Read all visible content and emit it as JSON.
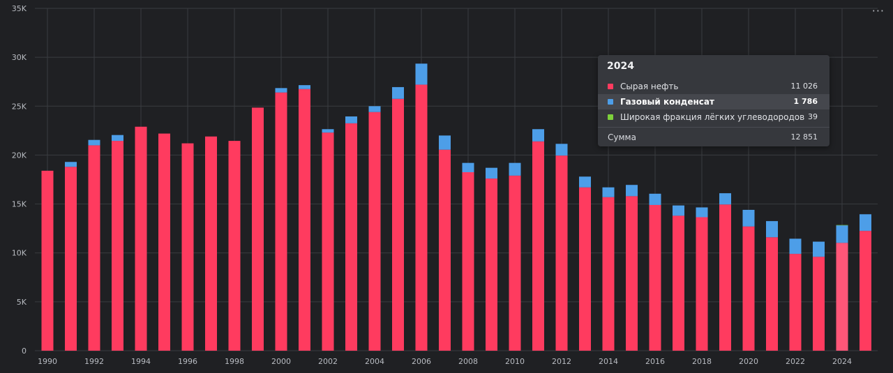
{
  "chart_data": {
    "type": "bar",
    "stacked": true,
    "title": "",
    "xlabel": "",
    "ylabel": "",
    "ylim": [
      0,
      35000
    ],
    "yticks": [
      {
        "value": 0,
        "label": "0"
      },
      {
        "value": 5000,
        "label": "5K"
      },
      {
        "value": 10000,
        "label": "10K"
      },
      {
        "value": 15000,
        "label": "15K"
      },
      {
        "value": 20000,
        "label": "20K"
      },
      {
        "value": 25000,
        "label": "25K"
      },
      {
        "value": 30000,
        "label": "30K"
      },
      {
        "value": 35000,
        "label": "35K"
      }
    ],
    "categories": [
      "1990",
      "1991",
      "1992",
      "1993",
      "1994",
      "1995",
      "1996",
      "1997",
      "1998",
      "1999",
      "2000",
      "2001",
      "2002",
      "2003",
      "2004",
      "2005",
      "2006",
      "2007",
      "2008",
      "2009",
      "2010",
      "2011",
      "2012",
      "2013",
      "2014",
      "2015",
      "2016",
      "2017",
      "2018",
      "2019",
      "2020",
      "2021",
      "2022",
      "2023",
      "2024",
      "2025"
    ],
    "xtick_labels": [
      "1990",
      "",
      "1992",
      "",
      "1994",
      "",
      "1996",
      "",
      "1998",
      "",
      "2000",
      "",
      "2002",
      "",
      "2004",
      "",
      "2006",
      "",
      "2008",
      "",
      "2010",
      "",
      "2012",
      "",
      "2014",
      "",
      "2016",
      "",
      "2018",
      "",
      "2020",
      "",
      "2022",
      "",
      "2024",
      ""
    ],
    "grid": true,
    "series": [
      {
        "name": "Сырая нефть",
        "color": "#ff3b5f",
        "values": [
          18400,
          18800,
          21000,
          21450,
          22900,
          22200,
          21200,
          21900,
          21450,
          24850,
          26400,
          26750,
          22300,
          23250,
          24400,
          25750,
          27200,
          20550,
          18250,
          17600,
          17900,
          21400,
          19950,
          16700,
          15700,
          15800,
          14900,
          13800,
          13650,
          14950,
          12700,
          11600,
          9900,
          9600,
          11026,
          12250
        ]
      },
      {
        "name": "Газовый конденсат",
        "color": "#4d9ee8",
        "values": [
          0,
          500,
          550,
          600,
          0,
          0,
          0,
          0,
          0,
          0,
          450,
          400,
          350,
          700,
          600,
          1200,
          2150,
          1450,
          950,
          1100,
          1300,
          1250,
          1200,
          1100,
          1000,
          1150,
          1150,
          1050,
          1000,
          1150,
          1700,
          1650,
          1550,
          1550,
          1786,
          1700
        ]
      },
      {
        "name": "Широкая фракция лёгких углеводородов",
        "color": "#7dd13b",
        "values": [
          0,
          0,
          0,
          0,
          0,
          0,
          0,
          0,
          0,
          0,
          0,
          0,
          0,
          0,
          0,
          0,
          0,
          0,
          0,
          0,
          0,
          0,
          0,
          0,
          0,
          0,
          0,
          0,
          0,
          0,
          0,
          0,
          0,
          0,
          39,
          0
        ]
      }
    ],
    "highlight_category": "2024",
    "legend": "tooltip"
  },
  "tooltip": {
    "title": "2024",
    "rows": [
      {
        "label": "Сырая нефть",
        "value": "11 026",
        "color": "#ff3b5f"
      },
      {
        "label": "Газовый конденсат",
        "value": "1 786",
        "color": "#4d9ee8"
      },
      {
        "label": "Широкая фракция лёгких углеводородов",
        "value": "39",
        "color": "#7dd13b"
      }
    ],
    "sum_label": "Сумма",
    "sum_value": "12 851"
  },
  "menu": {
    "label": "···"
  },
  "colors": {
    "background": "#1f2023",
    "grid": "#3a3c40",
    "tick_text": "#b9bcc2",
    "highlight_bar": "#ff5678"
  }
}
